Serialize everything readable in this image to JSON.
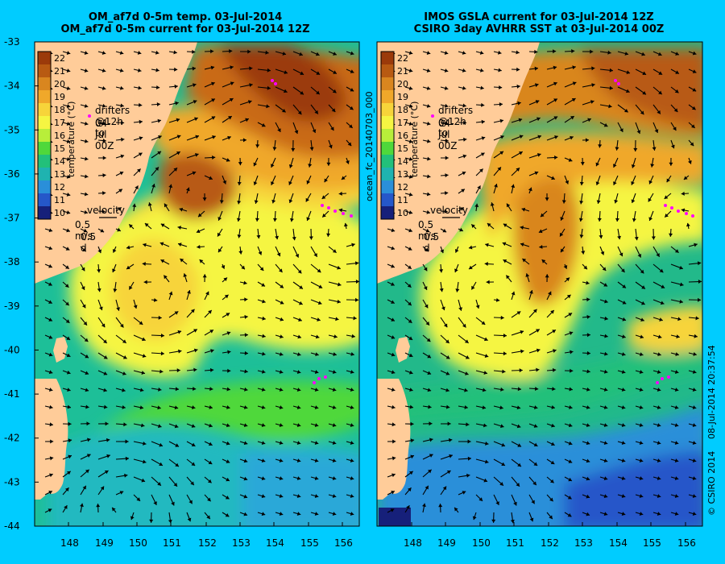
{
  "left_panel": {
    "title_line1": "OM_af7d 0-5m temp. 03-Jul-2014",
    "title_line2": "OM_af7d 0-5m current for 03-Jul-2014 12Z",
    "side_label": ""
  },
  "right_panel": {
    "title_line1": "IMOS GSLA current for 03-Jul-2014 12Z",
    "title_line2": "CSIRO 3day AVHRR SST at 03-Jul-2014 00Z",
    "side_label": "ocean_fc_20140703_000"
  },
  "colorbar": {
    "label": "temperature (°C)",
    "ticks": [
      "22",
      "21",
      "20",
      "19",
      "18",
      "17",
      "16",
      "15",
      "14",
      "13",
      "12",
      "11",
      "10"
    ],
    "colors": [
      "#9b3a0a",
      "#b85a12",
      "#d9861f",
      "#f0a82a",
      "#f7d43a",
      "#f5f542",
      "#b8ee3a",
      "#4fd83b",
      "#22c07a",
      "#1fb3b0",
      "#2a8fd9",
      "#2557c9",
      "#16207a"
    ]
  },
  "legend": {
    "drifters_line1": "drifters @12h to",
    "drifters_line2": "04-Jul 00Z",
    "velocity_label": "velocity",
    "velocity_scale": "0.5 m/s",
    "velocity_time": "0.5 d"
  },
  "lat_ticks": [
    "-33",
    "-34",
    "-35",
    "-36",
    "-37",
    "-38",
    "-39",
    "-40",
    "-41",
    "-42",
    "-43",
    "-44"
  ],
  "lon_ticks": [
    "148",
    "149",
    "150",
    "151",
    "152",
    "153",
    "154",
    "155",
    "156"
  ],
  "footer": {
    "date_stamp": "08-Jul-2014 20:37:54",
    "copyright": "© CSIRO 2014"
  },
  "colors": {
    "background": "#00ccff",
    "land": "#ffcc99",
    "arrow": "#000000",
    "drifter": "#ff00ff"
  }
}
